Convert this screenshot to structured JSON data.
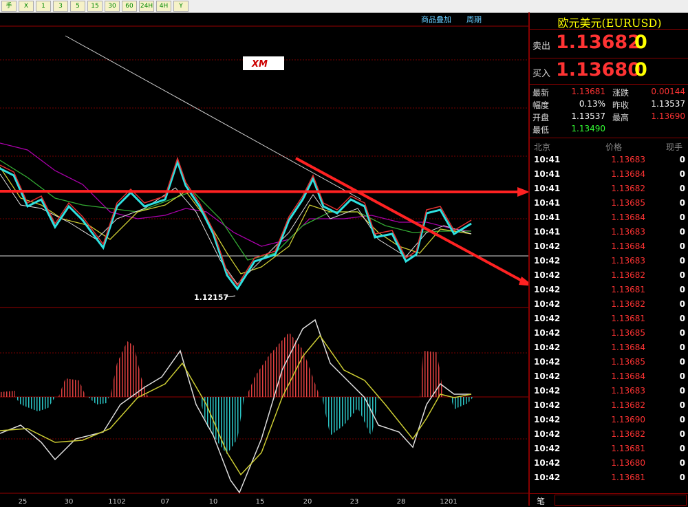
{
  "toolbar": {
    "buttons": [
      "手",
      "X",
      "1",
      "3",
      "5",
      "15",
      "30",
      "60",
      "24H",
      "4H",
      "Y"
    ]
  },
  "chart": {
    "links": [
      "商品叠加",
      "周期"
    ],
    "annotation": "1.12157",
    "logo": "XM",
    "x_labels": [
      "25",
      "30",
      "1102",
      "07",
      "10",
      "15",
      "20",
      "23",
      "28",
      "1201"
    ]
  },
  "quote": {
    "title": "欧元美元(EURUSD)",
    "sell": {
      "label": "卖出",
      "price": "1.13682",
      "volume": "0"
    },
    "buy": {
      "label": "买入",
      "price": "1.13680",
      "volume": "0"
    },
    "stats": [
      [
        "最新",
        "1.13681",
        "涨跌",
        "0.00144"
      ],
      [
        "幅度",
        "0.13%",
        "昨收",
        "1.13537"
      ],
      [
        "开盘",
        "1.13537",
        "最高",
        "1.13690"
      ],
      [
        "最低",
        "1.13490"
      ]
    ],
    "ticks_header": [
      "北京",
      "价格",
      "现手"
    ],
    "ticks": [
      [
        "10:41",
        "1.13683",
        "0"
      ],
      [
        "10:41",
        "1.13684",
        "0"
      ],
      [
        "10:41",
        "1.13682",
        "0"
      ],
      [
        "10:41",
        "1.13685",
        "0"
      ],
      [
        "10:41",
        "1.13684",
        "0"
      ],
      [
        "10:41",
        "1.13683",
        "0"
      ],
      [
        "10:42",
        "1.13684",
        "0"
      ],
      [
        "10:42",
        "1.13683",
        "0"
      ],
      [
        "10:42",
        "1.13682",
        "0"
      ],
      [
        "10:42",
        "1.13681",
        "0"
      ],
      [
        "10:42",
        "1.13682",
        "0"
      ],
      [
        "10:42",
        "1.13681",
        "0"
      ],
      [
        "10:42",
        "1.13685",
        "0"
      ],
      [
        "10:42",
        "1.13684",
        "0"
      ],
      [
        "10:42",
        "1.13685",
        "0"
      ],
      [
        "10:42",
        "1.13684",
        "0"
      ],
      [
        "10:42",
        "1.13683",
        "0"
      ],
      [
        "10:42",
        "1.13682",
        "0"
      ],
      [
        "10:42",
        "1.13690",
        "0"
      ],
      [
        "10:42",
        "1.13682",
        "0"
      ],
      [
        "10:42",
        "1.13681",
        "0"
      ],
      [
        "10:42",
        "1.13680",
        "0"
      ],
      [
        "10:42",
        "1.13681",
        "0"
      ]
    ],
    "footer": "笔"
  }
}
